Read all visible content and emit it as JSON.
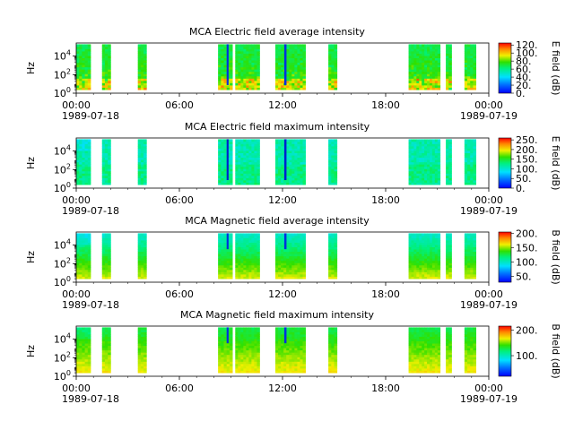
{
  "figure": {
    "x_ticks": [
      "00:00",
      "06:00",
      "12:00",
      "18:00",
      "00:00"
    ],
    "x_date_left": "1989-07-18",
    "x_date_right": "1989-07-19"
  },
  "chart_data": [
    {
      "type": "heatmap",
      "title": "MCA  Electric field average intensity",
      "ylabel": "Hz",
      "colorbar_label": "E field (dB)",
      "y_scale": "log",
      "y_ticks": [
        {
          "base": "10",
          "exp": "0"
        },
        {
          "base": "10",
          "exp": "2"
        },
        {
          "base": "10",
          "exp": "4"
        }
      ],
      "colorbar_ticks": [
        "0.",
        "20.",
        "40.",
        "60.",
        "80.",
        "100.",
        "120."
      ],
      "clim": [
        0,
        125
      ],
      "colormap": "jet-like (blue-cyan-green-yellow-orange-red)",
      "x_range": [
        "1989-07-18 00:00",
        "1989-07-19 00:00"
      ],
      "data_segments_utc": [
        [
          "00:00",
          "00:50"
        ],
        [
          "01:30",
          "02:00"
        ],
        [
          "03:35",
          "04:05"
        ],
        [
          "08:15",
          "09:05"
        ],
        [
          "09:15",
          "10:40"
        ],
        [
          "11:35",
          "13:20"
        ],
        [
          "14:40",
          "15:10"
        ],
        [
          "19:20",
          "21:10"
        ],
        [
          "21:30",
          "21:50"
        ],
        [
          "22:35",
          "23:15"
        ]
      ],
      "typical_level": "green (about 60-80 dB) with yellow/orange/red bursts at low frequency"
    },
    {
      "type": "heatmap",
      "title": "MCA  Electric field maximum intensity",
      "ylabel": "Hz",
      "colorbar_label": "E field (dB)",
      "y_scale": "log",
      "y_ticks": [
        {
          "base": "10",
          "exp": "0"
        },
        {
          "base": "10",
          "exp": "2"
        },
        {
          "base": "10",
          "exp": "4"
        }
      ],
      "colorbar_ticks": [
        "0.",
        "50.",
        "100.",
        "150.",
        "200.",
        "250."
      ],
      "clim": [
        0,
        260
      ],
      "colormap": "jet-like",
      "x_range": [
        "1989-07-18 00:00",
        "1989-07-19 00:00"
      ],
      "data_segments_utc": [
        [
          "00:00",
          "00:50"
        ],
        [
          "01:30",
          "02:00"
        ],
        [
          "03:35",
          "04:05"
        ],
        [
          "08:15",
          "09:05"
        ],
        [
          "09:15",
          "10:40"
        ],
        [
          "11:35",
          "13:20"
        ],
        [
          "14:40",
          "15:10"
        ],
        [
          "19:20",
          "21:10"
        ],
        [
          "21:30",
          "21:50"
        ],
        [
          "22:35",
          "23:15"
        ]
      ],
      "typical_level": "cyan-green (about 120-150 dB), blue near 08:45 and 12:10"
    },
    {
      "type": "heatmap",
      "title": "MCA  Magnetic field average intensity",
      "ylabel": "Hz",
      "colorbar_label": "B field (dB)",
      "y_scale": "log",
      "y_ticks": [
        {
          "base": "10",
          "exp": "0"
        },
        {
          "base": "10",
          "exp": "2"
        },
        {
          "base": "10",
          "exp": "4"
        }
      ],
      "colorbar_ticks": [
        "50.",
        "100.",
        "150.",
        "200."
      ],
      "clim": [
        30,
        205
      ],
      "colormap": "jet-like",
      "x_range": [
        "1989-07-18 00:00",
        "1989-07-19 00:00"
      ],
      "data_segments_utc": [
        [
          "00:00",
          "00:50"
        ],
        [
          "01:30",
          "02:00"
        ],
        [
          "03:35",
          "04:05"
        ],
        [
          "08:15",
          "09:05"
        ],
        [
          "09:15",
          "10:40"
        ],
        [
          "11:35",
          "13:20"
        ],
        [
          "14:40",
          "15:10"
        ],
        [
          "19:20",
          "21:10"
        ],
        [
          "21:30",
          "21:50"
        ],
        [
          "22:35",
          "23:15"
        ]
      ],
      "typical_level": "cyan at high frequency grading to green/yellow/orange at low frequency"
    },
    {
      "type": "heatmap",
      "title": "MCA  Magnetic field maximum intensity",
      "ylabel": "Hz",
      "colorbar_label": "B field (dB)",
      "y_scale": "log",
      "y_ticks": [
        {
          "base": "10",
          "exp": "0"
        },
        {
          "base": "10",
          "exp": "2"
        },
        {
          "base": "10",
          "exp": "4"
        }
      ],
      "colorbar_ticks": [
        "100.",
        "200."
      ],
      "clim": [
        20,
        215
      ],
      "colormap": "jet-like",
      "x_range": [
        "1989-07-18 00:00",
        "1989-07-19 00:00"
      ],
      "data_segments_utc": [
        [
          "00:00",
          "00:50"
        ],
        [
          "01:30",
          "02:00"
        ],
        [
          "03:35",
          "04:05"
        ],
        [
          "08:15",
          "09:05"
        ],
        [
          "09:15",
          "10:40"
        ],
        [
          "11:35",
          "13:20"
        ],
        [
          "14:40",
          "15:10"
        ],
        [
          "19:20",
          "21:10"
        ],
        [
          "21:30",
          "21:50"
        ],
        [
          "22:35",
          "23:15"
        ]
      ],
      "typical_level": "green (about 120-140 dB) with yellow/orange at low frequency"
    }
  ]
}
